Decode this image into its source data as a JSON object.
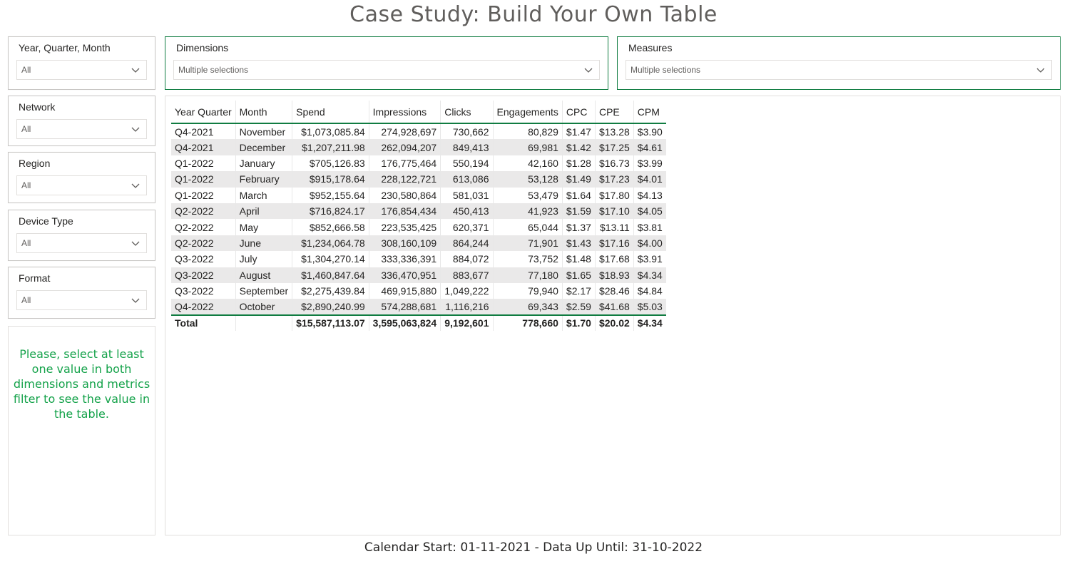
{
  "title": "Case Study: Build Your Own Table",
  "slicers": {
    "year_quarter_month": {
      "label": "Year, Quarter, Month",
      "value": "All"
    },
    "network": {
      "label": "Network",
      "value": "All"
    },
    "region": {
      "label": "Region",
      "value": "All"
    },
    "device_type": {
      "label": "Device Type",
      "value": "All"
    },
    "format": {
      "label": "Format",
      "value": "All"
    },
    "dimensions": {
      "label": "Dimensions",
      "value": "Multiple selections"
    },
    "measures": {
      "label": "Measures",
      "value": "Multiple selections"
    }
  },
  "message": "Please, select at least one value in both dimensions and metrics filter to see the value in the table.",
  "table": {
    "columns": [
      "Year Quarter",
      "Month",
      "Spend",
      "Impressions",
      "Clicks",
      "Engagements",
      "CPC",
      "CPE",
      "CPM"
    ],
    "rows": [
      [
        "Q4-2021",
        "November",
        "$1,073,085.84",
        "274,928,697",
        "730,662",
        "80,829",
        "$1.47",
        "$13.28",
        "$3.90"
      ],
      [
        "Q4-2021",
        "December",
        "$1,207,211.98",
        "262,094,207",
        "849,413",
        "69,981",
        "$1.42",
        "$17.25",
        "$4.61"
      ],
      [
        "Q1-2022",
        "January",
        "$705,126.83",
        "176,775,464",
        "550,194",
        "42,160",
        "$1.28",
        "$16.73",
        "$3.99"
      ],
      [
        "Q1-2022",
        "February",
        "$915,178.64",
        "228,122,721",
        "613,086",
        "53,128",
        "$1.49",
        "$17.23",
        "$4.01"
      ],
      [
        "Q1-2022",
        "March",
        "$952,155.64",
        "230,580,864",
        "581,031",
        "53,479",
        "$1.64",
        "$17.80",
        "$4.13"
      ],
      [
        "Q2-2022",
        "April",
        "$716,824.17",
        "176,854,434",
        "450,413",
        "41,923",
        "$1.59",
        "$17.10",
        "$4.05"
      ],
      [
        "Q2-2022",
        "May",
        "$852,666.58",
        "223,535,425",
        "620,371",
        "65,044",
        "$1.37",
        "$13.11",
        "$3.81"
      ],
      [
        "Q2-2022",
        "June",
        "$1,234,064.78",
        "308,160,109",
        "864,244",
        "71,901",
        "$1.43",
        "$17.16",
        "$4.00"
      ],
      [
        "Q3-2022",
        "July",
        "$1,304,270.14",
        "333,336,391",
        "884,072",
        "73,752",
        "$1.48",
        "$17.68",
        "$3.91"
      ],
      [
        "Q3-2022",
        "August",
        "$1,460,847.64",
        "336,470,951",
        "883,677",
        "77,180",
        "$1.65",
        "$18.93",
        "$4.34"
      ],
      [
        "Q3-2022",
        "September",
        "$2,275,439.84",
        "469,915,880",
        "1,049,222",
        "79,940",
        "$2.17",
        "$28.46",
        "$4.84"
      ],
      [
        "Q4-2022",
        "October",
        "$2,890,240.99",
        "574,288,681",
        "1,116,216",
        "69,343",
        "$2.59",
        "$41.68",
        "$5.03"
      ]
    ],
    "total": [
      "Total",
      "",
      "$15,587,113.07",
      "3,595,063,824",
      "9,192,601",
      "778,660",
      "$1.70",
      "$20.02",
      "$4.34"
    ]
  },
  "footer": "Calendar Start: 01-11-2021 - Data Up Until: 31-10-2022",
  "colors": {
    "accent": "#107c41",
    "message": "#14a24a"
  },
  "icons": {
    "dropdown": "chevron-down-icon"
  }
}
